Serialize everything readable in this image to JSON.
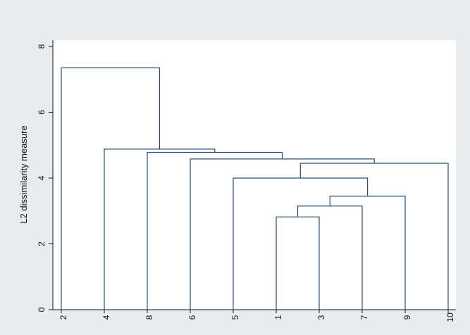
{
  "chart_data": {
    "type": "dendrogram",
    "title": "",
    "xlabel": "",
    "ylabel": "L2 dissimilarity measure",
    "ylim": [
      0,
      8
    ],
    "yticks": [
      0,
      2,
      4,
      6,
      8
    ],
    "grid": false,
    "leaf_order": [
      "2",
      "4",
      "8",
      "6",
      "5",
      "1",
      "3",
      "7",
      "9",
      "10"
    ],
    "merges": [
      {
        "children": [
          "1",
          "3"
        ],
        "height": 2.82
      },
      {
        "children": [
          "1+3",
          "7"
        ],
        "height": 3.15
      },
      {
        "children": [
          "1+3+7",
          "9"
        ],
        "height": 3.45
      },
      {
        "children": [
          "5",
          "1+3+7+9"
        ],
        "height": 4.0
      },
      {
        "children": [
          "5+1+3+7+9",
          "10"
        ],
        "height": 4.45
      },
      {
        "children": [
          "6",
          "5+1+3+7+9+10"
        ],
        "height": 4.58
      },
      {
        "children": [
          "8",
          "6+5+1+3+7+9+10"
        ],
        "height": 4.78
      },
      {
        "children": [
          "4",
          "8+6+5+1+3+7+9+10"
        ],
        "height": 4.88
      },
      {
        "children": [
          "2",
          "4+8+6+5+1+3+7+9+10"
        ],
        "height": 7.35
      }
    ],
    "colors": {
      "link": "#26507a",
      "plot_background": "#ffffff",
      "page_background": "#e9ecef",
      "axis": "#111111"
    }
  }
}
